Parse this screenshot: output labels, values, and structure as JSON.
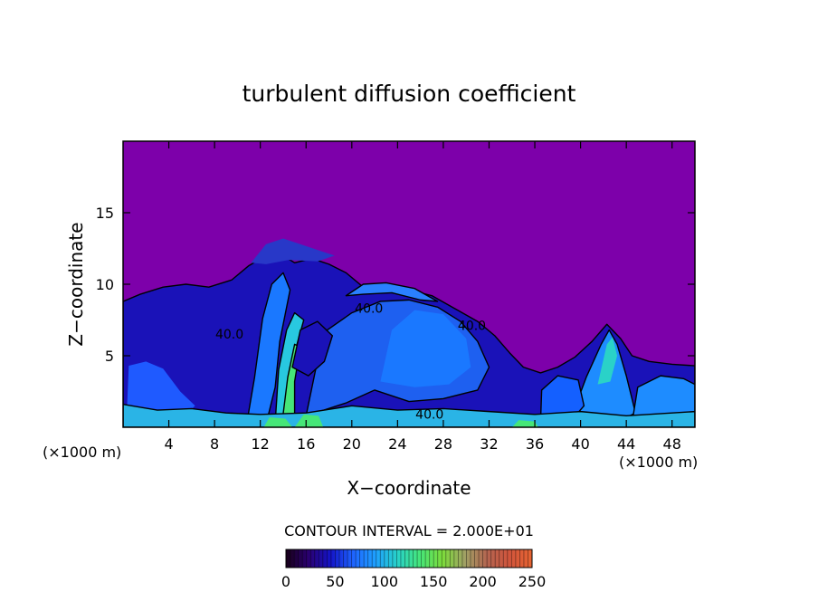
{
  "chart_data": {
    "type": "heatmap",
    "title": "turbulent diffusion coefficient",
    "xlabel": "X−coordinate",
    "ylabel": "Z−coordinate",
    "x_unit_left": "(×1000 m)",
    "x_unit_right": "(×1000 m)",
    "xlim": [
      0,
      50
    ],
    "ylim": [
      0,
      20
    ],
    "x_ticks": [
      4,
      8,
      12,
      16,
      20,
      24,
      28,
      32,
      36,
      40,
      44,
      48
    ],
    "y_ticks": [
      5,
      10,
      15
    ],
    "contour_interval_text": "CONTOUR INTERVAL = 2.000E+01",
    "contour_labels": [
      {
        "text": "40.0",
        "x": 9.3,
        "z": 6.2
      },
      {
        "text": "40.0",
        "x": 21.5,
        "z": 8.0
      },
      {
        "text": "40.0",
        "x": 30.5,
        "z": 6.8
      },
      {
        "text": "40.0",
        "x": 26.8,
        "z": 0.6
      }
    ],
    "colorbar": {
      "range": [
        0,
        250
      ],
      "ticks": [
        0,
        50,
        100,
        150,
        200,
        250
      ],
      "colors": [
        "#180018",
        "#2a0070",
        "#1414c8",
        "#1e64ff",
        "#1ea0ff",
        "#28d2c8",
        "#46e678",
        "#7ddc3c",
        "#a0a064",
        "#b46450",
        "#d2553c",
        "#e66432"
      ]
    },
    "grid": false,
    "background_value_color": "#7d00aa"
  }
}
